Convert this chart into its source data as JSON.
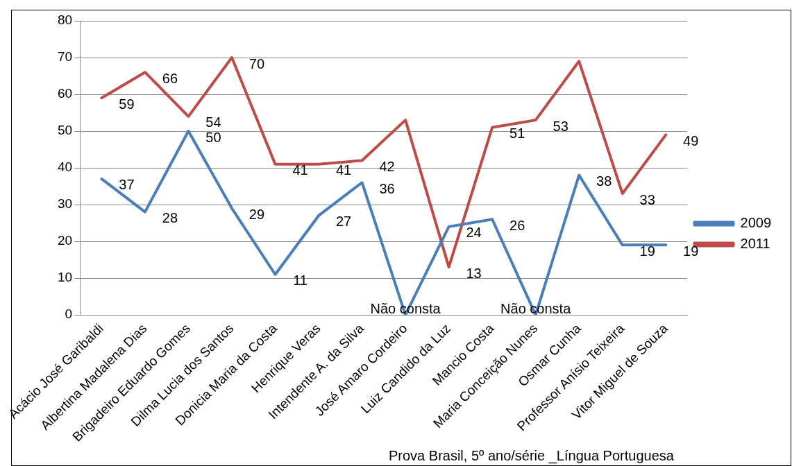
{
  "chart_data": {
    "type": "line",
    "categories": [
      "Acácio José Garibaldi",
      "Albertina Madalena Dias",
      "Brigadeiro Eduardo Gomes",
      "Dilma Lucia dos Santos",
      "Donicia Maria da Costa",
      "Henrique Veras",
      "Intendente A. da Silva",
      "José Amaro Cordeiro",
      "Luiz Candido da Luz",
      "Mancio Costa",
      "Maria Conceição Nunes",
      "Osmar Cunha",
      "Professor Anísio Teixeira",
      "Vitor Miguel de Souza"
    ],
    "series": [
      {
        "name": "2009",
        "color": "#4a7ebb",
        "values": [
          37,
          28,
          50,
          29,
          11,
          27,
          36,
          0,
          24,
          26,
          0,
          38,
          19,
          19
        ],
        "value_labels": [
          "37",
          "28",
          "50",
          "29",
          "11",
          "27",
          "36",
          "Não consta",
          "24",
          "26",
          "Não consta",
          "38",
          "19",
          "19"
        ]
      },
      {
        "name": "2011",
        "color": "#be4b48",
        "values": [
          59,
          66,
          54,
          70,
          41,
          41,
          42,
          53,
          13,
          51,
          53,
          69,
          33,
          49
        ],
        "value_labels": [
          "59",
          "66",
          "54",
          "70",
          "41",
          "41",
          "42",
          null,
          "13",
          "51",
          "53",
          null,
          "33",
          "49"
        ]
      }
    ],
    "ylim": [
      0,
      80
    ],
    "yticks": [
      0,
      10,
      20,
      30,
      40,
      50,
      60,
      70,
      80
    ],
    "grid": "y",
    "legend": "right",
    "marker": "none",
    "line_style": "solid",
    "annotations": [
      "Prova Brasil, 5º ano/série _Língua Portuguesa"
    ]
  }
}
